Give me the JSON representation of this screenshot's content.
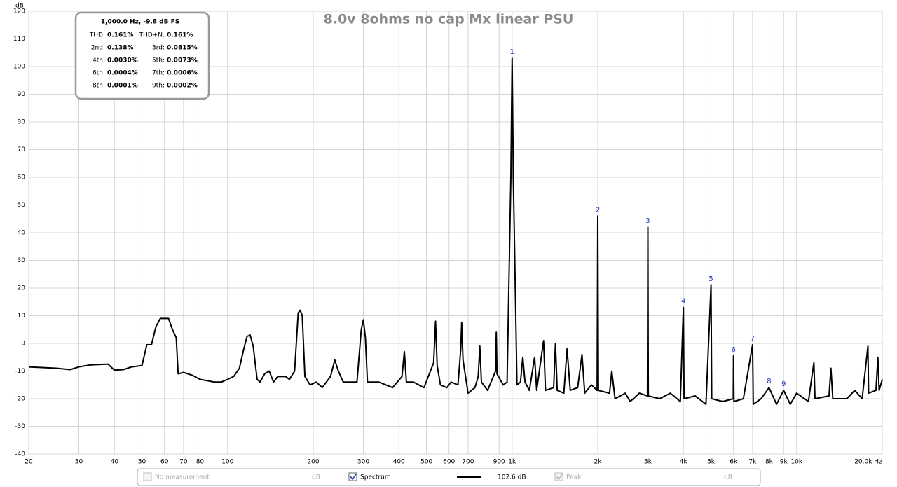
{
  "chart_data": {
    "type": "line",
    "title": "8.0v 8ohms no cap Mx linear PSU",
    "y_unit": "dB",
    "xscale": "log",
    "grid": true,
    "xlim": [
      20,
      20000
    ],
    "ylim": [
      -40,
      120
    ],
    "yticks": [
      -40,
      -30,
      -20,
      -10,
      0,
      10,
      20,
      30,
      40,
      50,
      60,
      70,
      80,
      90,
      100,
      110,
      120
    ],
    "xticks": [
      20,
      30,
      40,
      50,
      60,
      70,
      80,
      100,
      200,
      300,
      400,
      500,
      600,
      700,
      900,
      {
        "value": 1000,
        "label": "1k"
      },
      {
        "value": 2000,
        "label": "2k"
      },
      {
        "value": 3000,
        "label": "3k"
      },
      {
        "value": 4000,
        "label": "4k"
      },
      {
        "value": 5000,
        "label": "5k"
      },
      {
        "value": 6000,
        "label": "6k"
      },
      {
        "value": 7000,
        "label": "7k"
      },
      {
        "value": 8000,
        "label": "8k"
      },
      {
        "value": 9000,
        "label": "9k"
      },
      {
        "value": 10000,
        "label": "10k"
      },
      {
        "value": 20000,
        "label": "20.0k Hz"
      }
    ],
    "x": [
      20,
      25,
      28,
      30,
      33,
      38,
      40,
      43,
      46,
      50,
      52,
      54,
      56,
      58,
      62,
      64,
      66,
      67,
      70,
      75,
      80,
      90,
      95,
      100,
      105,
      110,
      114,
      117,
      120,
      123,
      127,
      130,
      135,
      140,
      145,
      150,
      160,
      165,
      172,
      177,
      180,
      183,
      187,
      195,
      205,
      215,
      230,
      238,
      245,
      255,
      270,
      285,
      295,
      300,
      305,
      310,
      340,
      360,
      380,
      410,
      418,
      425,
      450,
      490,
      530,
      538,
      545,
      560,
      590,
      610,
      645,
      660,
      665,
      672,
      700,
      740,
      760,
      770,
      780,
      820,
      875,
      880,
      885,
      930,
      960,
      990,
      1000,
      1010,
      1040,
      1070,
      1090,
      1110,
      1150,
      1200,
      1220,
      1290,
      1310,
      1400,
      1420,
      1440,
      1520,
      1560,
      1600,
      1700,
      1760,
      1800,
      1900,
      1990,
      2000,
      2010,
      2200,
      2240,
      2300,
      2500,
      2600,
      2800,
      2990,
      3000,
      3010,
      3300,
      3600,
      3900,
      4000,
      4020,
      4400,
      4800,
      5000,
      5030,
      5500,
      5990,
      6000,
      6020,
      6500,
      7000,
      7040,
      7500,
      8000,
      8500,
      9000,
      9500,
      10000,
      11000,
      11500,
      11600,
      13000,
      13200,
      13400,
      15000,
      16000,
      17000,
      17800,
      17900,
      19000,
      19300,
      19500,
      20000
    ],
    "series": [
      {
        "name": "Spectrum",
        "color": "#000000",
        "values": [
          -8.5,
          -9,
          -9.5,
          -8.5,
          -7.8,
          -7.5,
          -9.7,
          -9.5,
          -8.5,
          -8,
          -0.5,
          -0.5,
          6,
          9,
          9,
          5,
          2,
          -11,
          -10.5,
          -11.5,
          -13,
          -14,
          -14,
          -13,
          -12,
          -9,
          -2,
          2.5,
          3,
          -1,
          -13,
          -14,
          -11,
          -10,
          -14,
          -12,
          -12,
          -13,
          -10,
          11,
          12,
          10,
          -12,
          -15,
          -14,
          -16,
          -12,
          -6,
          -10,
          -14,
          -14,
          -14,
          5,
          8.5,
          2,
          -14,
          -14,
          -15,
          -16,
          -12,
          -3,
          -14,
          -14,
          -16,
          -7,
          8,
          -8,
          -15,
          -16,
          -14,
          -15,
          -2,
          7.5,
          -6,
          -18,
          -16,
          -12,
          -1,
          -14,
          -17,
          -10,
          4,
          -11,
          -15,
          -14,
          60,
          103,
          60,
          -15,
          -14,
          -5,
          -14,
          -17,
          -5,
          -17,
          1,
          -17,
          -16,
          0,
          -17,
          -18,
          -2,
          -17,
          -16,
          -4,
          -18,
          -15,
          -17,
          46,
          -17,
          -18,
          -10,
          -20,
          -18,
          -21,
          -18,
          -19,
          42,
          -19,
          -20,
          -18,
          -21,
          13,
          -20,
          -19,
          -22,
          21,
          -20,
          -21,
          -20,
          -4.5,
          -21,
          -20,
          -0.5,
          -22,
          -20,
          -16,
          -22,
          -17,
          -22,
          -18,
          -21,
          -7,
          -20,
          -19,
          -9,
          -20,
          -20,
          -17,
          -20,
          -1,
          -18,
          -17,
          -5,
          -17,
          -13
        ]
      }
    ],
    "harmonic_markers": [
      {
        "label": "1",
        "x": 1000,
        "y": 103
      },
      {
        "label": "2",
        "x": 2000,
        "y": 46
      },
      {
        "label": "3",
        "x": 3000,
        "y": 42
      },
      {
        "label": "4",
        "x": 4000,
        "y": 13
      },
      {
        "label": "5",
        "x": 5000,
        "y": 21
      },
      {
        "label": "6",
        "x": 6000,
        "y": -4.5
      },
      {
        "label": "7",
        "x": 7000,
        "y": -0.5
      },
      {
        "label": "8",
        "x": 8000,
        "y": -16
      },
      {
        "label": "9",
        "x": 9000,
        "y": -17
      }
    ],
    "info_box": {
      "title": "1,000.0 Hz, -9.8 dB FS",
      "rows": [
        [
          [
            "THD:",
            "0.161%"
          ],
          [
            "THD+N:",
            "0.161%"
          ]
        ],
        [
          [
            "2nd:",
            "0.138%"
          ],
          [
            "3rd:",
            "0.0815%"
          ]
        ],
        [
          [
            "4th:",
            "0.0030%"
          ],
          [
            "5th:",
            "0.0073%"
          ]
        ],
        [
          [
            "6th:",
            "0.0004%"
          ],
          [
            "7th:",
            "0.0006%"
          ]
        ],
        [
          [
            "8th:",
            "0.0001%"
          ],
          [
            "9th:",
            "0.0002%"
          ]
        ]
      ]
    },
    "legend": {
      "no_measurement": "No measurement",
      "no_measurement_unit": "dB",
      "spectrum": "Spectrum",
      "spectrum_value": "102.6 dB",
      "peak": "Peak",
      "peak_unit": "dB"
    }
  }
}
